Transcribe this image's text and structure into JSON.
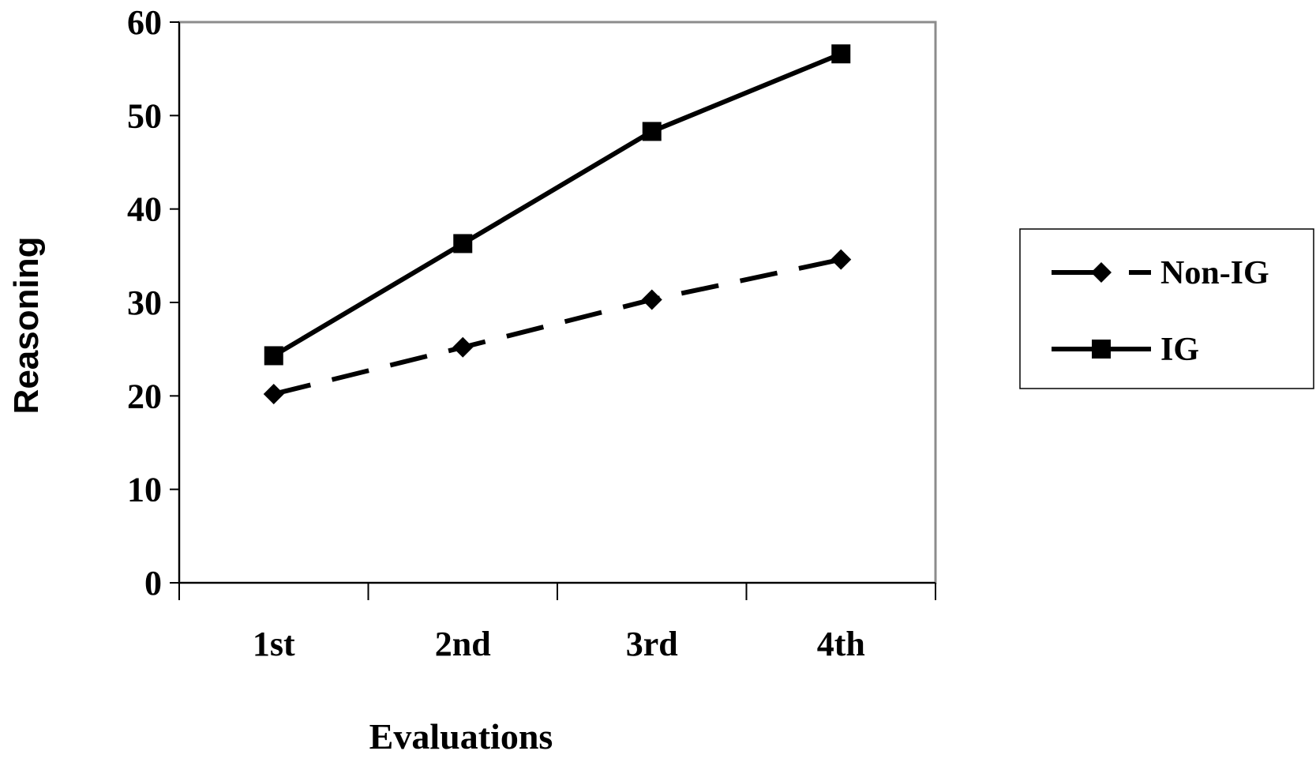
{
  "chart_data": {
    "type": "line",
    "xlabel": "Evaluations",
    "ylabel": "Reasoning",
    "categories": [
      "1st",
      "2nd",
      "3rd",
      "4th"
    ],
    "ylim": [
      0,
      60
    ],
    "yticks": [
      0,
      10,
      20,
      30,
      40,
      50,
      60
    ],
    "grid": false,
    "legend_position": "right",
    "series": [
      {
        "name": "Non-IG",
        "values": [
          20.2,
          25.2,
          30.3,
          34.6
        ],
        "line_style": "dashed",
        "marker": "diamond",
        "color": "#000000"
      },
      {
        "name": "IG",
        "values": [
          24.3,
          36.3,
          48.3,
          56.6
        ],
        "line_style": "solid",
        "marker": "square",
        "color": "#000000"
      }
    ]
  }
}
